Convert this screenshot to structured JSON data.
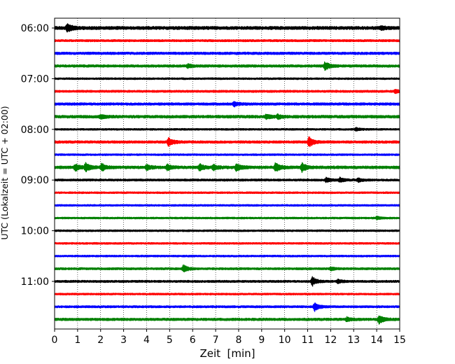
{
  "chart_data": {
    "type": "line",
    "title": "",
    "xlabel": "Zeit  [min]",
    "ylabel": "UTC (Lokalzeit = UTC + 02:00)",
    "xlim": [
      0,
      15
    ],
    "x_ticks": [
      "0",
      "1",
      "2",
      "3",
      "4",
      "5",
      "6",
      "7",
      "8",
      "9",
      "10",
      "11",
      "12",
      "13",
      "14",
      "15"
    ],
    "y_tick_labels": [
      "06:00",
      "07:00",
      "08:00",
      "09:00",
      "10:00",
      "11:00"
    ],
    "grid": "vertical dotted",
    "trace_interval_minutes": 15,
    "first_trace": "06:00",
    "trace_count": 24,
    "colors": [
      "#000000",
      "#ff0000",
      "#0000ff",
      "#008000"
    ],
    "traces": [
      {
        "start": "06:00",
        "color": "#000000",
        "amplitude": 4.5,
        "events": [
          [
            0.55,
            12
          ],
          [
            14.2,
            5
          ]
        ]
      },
      {
        "start": "06:15",
        "color": "#ff0000",
        "amplitude": 3,
        "events": []
      },
      {
        "start": "06:30",
        "color": "#0000ff",
        "amplitude": 3.5,
        "events": []
      },
      {
        "start": "06:45",
        "color": "#008000",
        "amplitude": 3.5,
        "events": [
          [
            5.8,
            5
          ],
          [
            11.75,
            12
          ]
        ]
      },
      {
        "start": "07:00",
        "color": "#000000",
        "amplitude": 2.5,
        "events": []
      },
      {
        "start": "07:15",
        "color": "#ff0000",
        "amplitude": 3,
        "events": [
          [
            14.8,
            5
          ]
        ]
      },
      {
        "start": "07:30",
        "color": "#0000ff",
        "amplitude": 3.5,
        "events": [
          [
            7.8,
            6
          ]
        ]
      },
      {
        "start": "07:45",
        "color": "#008000",
        "amplitude": 4,
        "events": [
          [
            2.0,
            5
          ],
          [
            9.2,
            6
          ],
          [
            9.7,
            5
          ]
        ]
      },
      {
        "start": "08:00",
        "color": "#000000",
        "amplitude": 2.5,
        "events": [
          [
            13.1,
            4
          ]
        ]
      },
      {
        "start": "08:15",
        "color": "#ff0000",
        "amplitude": 3.5,
        "events": [
          [
            4.95,
            12
          ],
          [
            11.05,
            14
          ]
        ]
      },
      {
        "start": "08:30",
        "color": "#0000ff",
        "amplitude": 2.5,
        "events": []
      },
      {
        "start": "08:45",
        "color": "#008000",
        "amplitude": 4,
        "events": [
          [
            0.9,
            10
          ],
          [
            1.35,
            11
          ],
          [
            2.05,
            10
          ],
          [
            4.0,
            7
          ],
          [
            4.9,
            8
          ],
          [
            6.3,
            9
          ],
          [
            6.9,
            7
          ],
          [
            7.9,
            11
          ],
          [
            9.6,
            12
          ],
          [
            10.75,
            13
          ]
        ]
      },
      {
        "start": "09:00",
        "color": "#000000",
        "amplitude": 3,
        "events": [
          [
            11.8,
            6
          ],
          [
            12.4,
            6
          ],
          [
            13.2,
            5
          ]
        ]
      },
      {
        "start": "09:15",
        "color": "#ff0000",
        "amplitude": 2.5,
        "events": []
      },
      {
        "start": "09:30",
        "color": "#0000ff",
        "amplitude": 2.5,
        "events": []
      },
      {
        "start": "09:45",
        "color": "#008000",
        "amplitude": 2.5,
        "events": [
          [
            14.0,
            4
          ]
        ]
      },
      {
        "start": "10:00",
        "color": "#000000",
        "amplitude": 2.5,
        "events": []
      },
      {
        "start": "10:15",
        "color": "#ff0000",
        "amplitude": 2.5,
        "events": []
      },
      {
        "start": "10:30",
        "color": "#0000ff",
        "amplitude": 2.5,
        "events": []
      },
      {
        "start": "10:45",
        "color": "#008000",
        "amplitude": 3,
        "events": [
          [
            5.6,
            10
          ],
          [
            12.0,
            4
          ]
        ]
      },
      {
        "start": "11:00",
        "color": "#000000",
        "amplitude": 3,
        "events": [
          [
            11.2,
            12
          ],
          [
            12.3,
            5
          ]
        ]
      },
      {
        "start": "11:15",
        "color": "#ff0000",
        "amplitude": 2.5,
        "events": []
      },
      {
        "start": "11:30",
        "color": "#0000ff",
        "amplitude": 3,
        "events": [
          [
            11.3,
            12
          ]
        ]
      },
      {
        "start": "11:45",
        "color": "#008000",
        "amplitude": 3.5,
        "events": [
          [
            12.7,
            5
          ],
          [
            14.1,
            12
          ]
        ]
      }
    ]
  }
}
